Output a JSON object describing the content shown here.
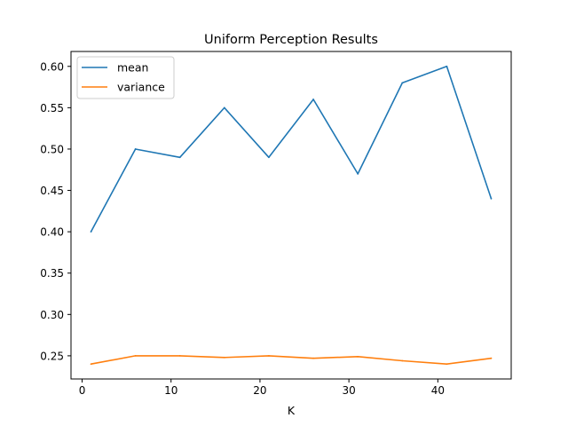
{
  "chart_data": {
    "type": "line",
    "title": "Uniform Perception Results",
    "xlabel": "K",
    "ylabel": "",
    "x": [
      1,
      6,
      11,
      16,
      21,
      26,
      31,
      36,
      41,
      46
    ],
    "series": [
      {
        "name": "mean",
        "color": "#1f77b4",
        "values": [
          0.4,
          0.5,
          0.49,
          0.55,
          0.49,
          0.56,
          0.47,
          0.58,
          0.6,
          0.44
        ]
      },
      {
        "name": "variance",
        "color": "#ff7f0e",
        "values": [
          0.24,
          0.25,
          0.25,
          0.248,
          0.25,
          0.247,
          0.249,
          0.244,
          0.24,
          0.247
        ]
      }
    ],
    "xlim": [
      -1.25,
      48.25
    ],
    "ylim": [
      0.222,
      0.618
    ],
    "xticks": [
      0,
      10,
      20,
      30,
      40
    ],
    "xtick_labels": [
      "0",
      "10",
      "20",
      "30",
      "40"
    ],
    "yticks": [
      0.25,
      0.3,
      0.35,
      0.4,
      0.45,
      0.5,
      0.55,
      0.6
    ],
    "ytick_labels": [
      "0.25",
      "0.30",
      "0.35",
      "0.40",
      "0.45",
      "0.50",
      "0.55",
      "0.60"
    ],
    "grid": false,
    "legend_position": "upper-left"
  }
}
